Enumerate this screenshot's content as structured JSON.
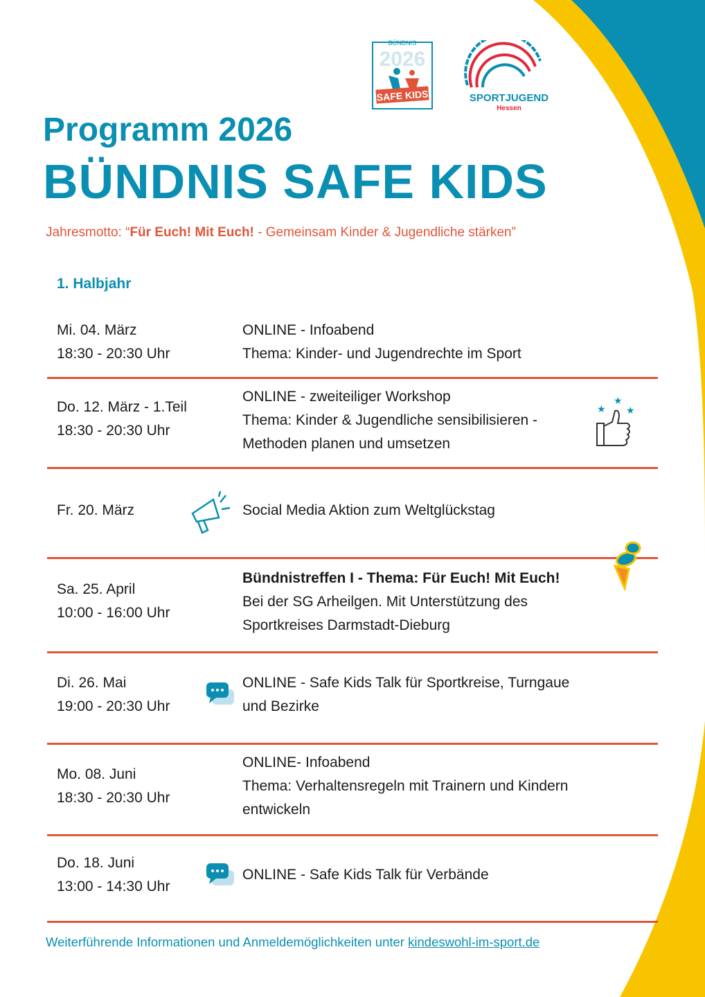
{
  "colors": {
    "teal": "#0a8fb2",
    "accent": "#e0553a",
    "yellow": "#f8c400"
  },
  "logos": {
    "safe_kids": "BÜNDNIS 2026 SAFE KIDS",
    "sportjugend": "SPORTJUGEND",
    "sportjugend_sub": "Hessen"
  },
  "header": {
    "title_line1": "Programm 2026",
    "title_line2": "BÜNDNIS SAFE KIDS"
  },
  "motto": {
    "prefix": "Jahresmotto: “",
    "bold": "Für Euch! Mit Euch!",
    "rest": " - Gemeinsam Kinder & Jugendliche stärken”"
  },
  "section": "1. Halbjahr",
  "events": [
    {
      "date": "Mi. 04. März",
      "time": "18:30 - 20:30 Uhr",
      "lines": [
        "ONLINE - Infoabend",
        "Thema: Kinder- und Jugendrechte im Sport"
      ]
    },
    {
      "date": "Do. 12. März - 1.Teil",
      "time": "18:30 - 20:30 Uhr",
      "lines": [
        "ONLINE - zweiteiliger Workshop",
        "Thema: Kinder & Jugendliche sensibilisieren -",
        "Methoden planen und umsetzen"
      ],
      "icon": "thumbs-up-icon"
    },
    {
      "date": "Fr. 20. März",
      "lines": [
        "Social Media Aktion zum Weltglückstag"
      ],
      "icon": "megaphone-icon"
    },
    {
      "date": "Sa. 25. April",
      "time": "10:00 - 16:00 Uhr",
      "title": "Bündnistreffen I - Thema: Für Euch! Mit Euch!",
      "lines": [
        "Bei der SG Arheilgen. Mit Unterstützung des",
        "Sportkreises Darmstadt-Dieburg"
      ],
      "icon": "pushpin-icon"
    },
    {
      "date": "Di. 26. Mai",
      "time": "19:00 - 20:30 Uhr",
      "lines": [
        "ONLINE - Safe Kids Talk für Sportkreise, Turngaue",
        "und Bezirke"
      ],
      "icon": "chat-bubbles-icon"
    },
    {
      "date": "Mo. 08. Juni",
      "time": "18:30 - 20:30 Uhr",
      "lines": [
        "ONLINE- Infoabend",
        "Thema: Verhaltensregeln mit Trainern und Kindern",
        "entwickeln"
      ]
    },
    {
      "date": "Do. 18. Juni",
      "time": "13:00 - 14:30 Uhr",
      "lines": [
        "ONLINE - Safe Kids Talk für Verbände"
      ],
      "icon": "chat-bubbles-icon"
    }
  ],
  "footer": {
    "text": "Weiterführende Informationen und Anmeldemöglichkeiten unter ",
    "link": "kindeswohl-im-sport.de"
  }
}
